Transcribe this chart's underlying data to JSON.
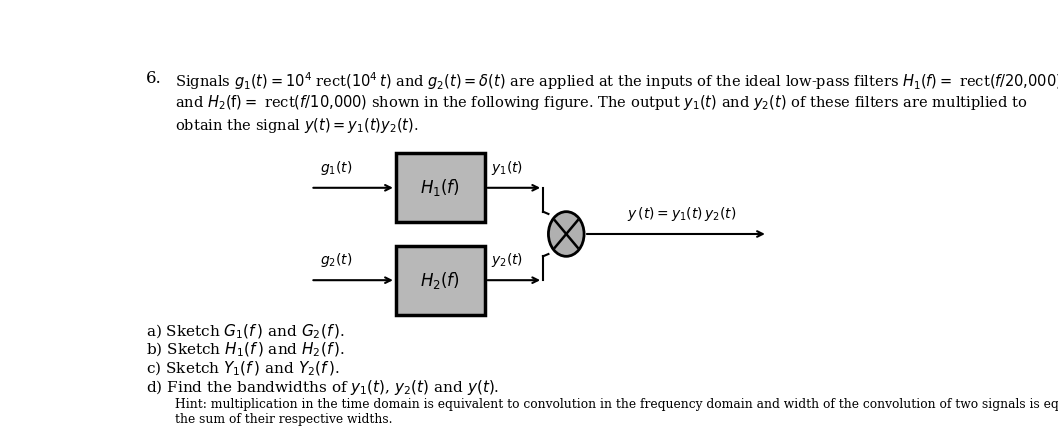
{
  "background_color": "#ffffff",
  "box1_label": "$H_1(f)$",
  "box2_label": "$H_2(f)$",
  "g1_label": "$g_1(t)$",
  "g2_label": "$g_2(t)$",
  "y1_label": "$y_1(t)$",
  "y2_label": "$y_2(t)$",
  "output_label": "$y\\,(t) = y_1(t)\\,y_2(t)$",
  "part_a": "a) Sketch $G_1(f\\,)$ and $G_2(f\\,)$.",
  "part_b": "b) Sketch $H_1(f\\,)$ and $H_2(f\\,)$.",
  "part_c": "c) Sketch $Y_1(f\\,)$ and $Y_2(f\\,)$.",
  "part_d": "d) Find the bandwidths of $y_1(t)$, $y_2(t)$ and $y(t)$.",
  "hint": "Hint: multiplication in the time domain is equivalent to convolution in the frequency domain and width of the convolution of two signals is equal to\nthe sum of their respective widths.",
  "box_fill": "#b8b8b8",
  "box_edge": "#000000",
  "text_color": "#000000",
  "ellipse_fill": "#b0b0b0"
}
